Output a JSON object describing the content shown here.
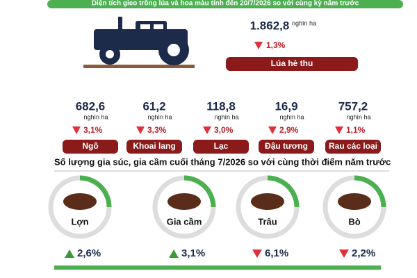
{
  "header": {
    "title": "Diện tích gieo trồng lúa và hoa màu tính đến 20/7/2026 so với cùng kỳ năm trước"
  },
  "main_crop": {
    "value": "1.862,8",
    "unit": "nghìn ha",
    "change": "1,3%",
    "label": "Lúa hè thu"
  },
  "crops": [
    {
      "value": "682,6",
      "unit": "nghìn ha",
      "change": "3,1%",
      "label": "Ngô"
    },
    {
      "value": "61,2",
      "unit": "nghìn ha",
      "change": "3,3%",
      "label": "Khoai lang"
    },
    {
      "value": "118,8",
      "unit": "nghìn ha",
      "change": "3,0%",
      "label": "Lạc"
    },
    {
      "value": "16,9",
      "unit": "nghìn ha",
      "change": "2,9%",
      "label": "Đậu tương"
    },
    {
      "value": "757,2",
      "unit": "nghìn ha",
      "change": "1,1%",
      "label": "Rau các loại"
    }
  ],
  "livestock_title": "Số lượng gia súc, gia cầm cuối tháng 7/2026 so với cùng thời điểm năm trước",
  "livestock": [
    {
      "label": "Lợn",
      "change": "2,6%"
    },
    {
      "label": "Gia cầm",
      "change": "3,1%"
    },
    {
      "label": "Trâu",
      "change": "6,1%"
    },
    {
      "label": "Bò",
      "change": "2,2%"
    }
  ]
}
